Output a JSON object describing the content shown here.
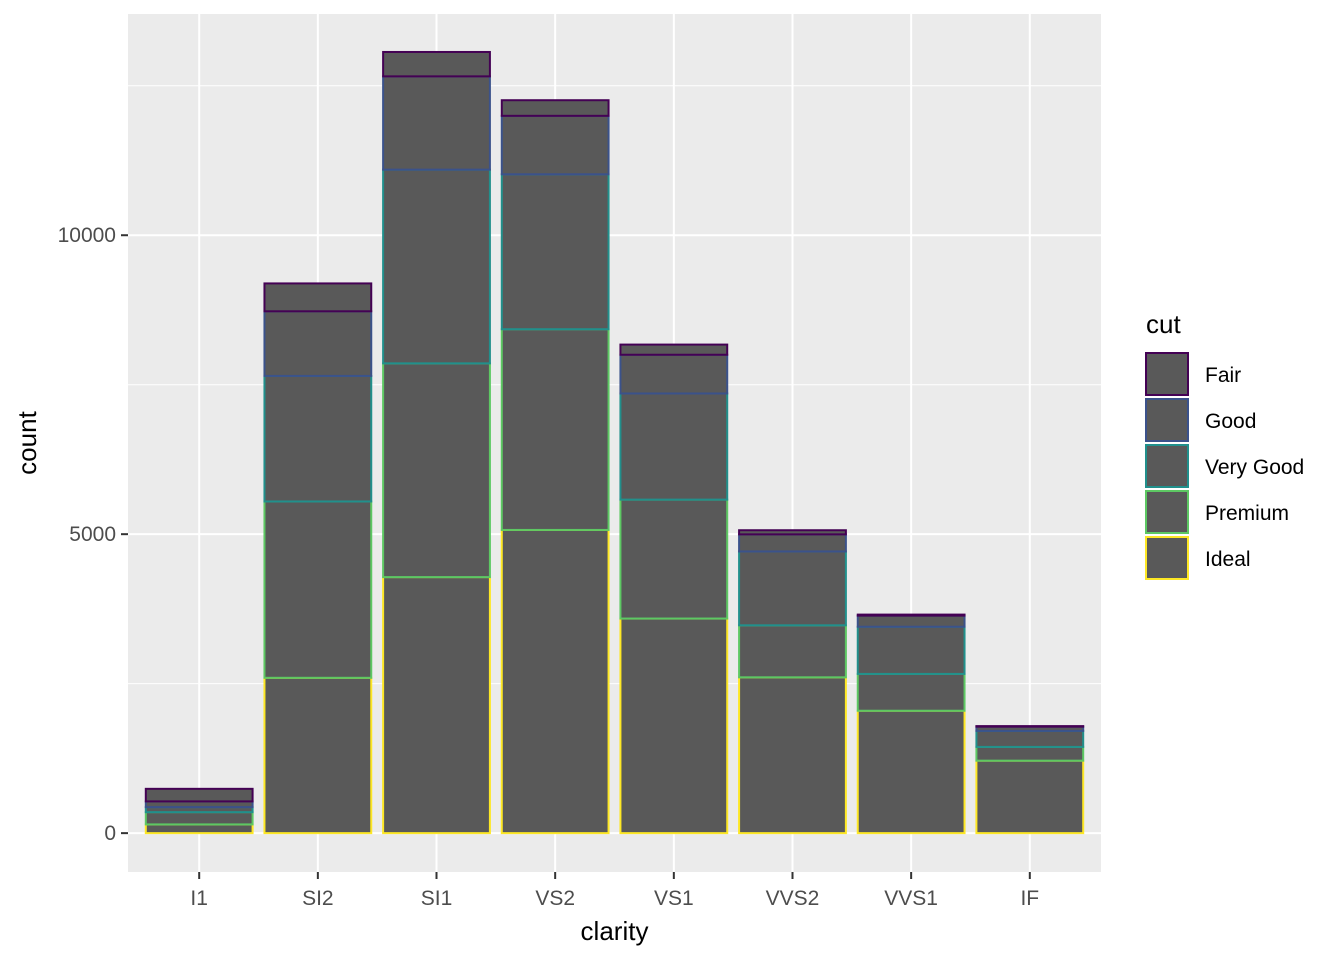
{
  "chart_data": {
    "type": "bar",
    "stacked": true,
    "xlabel": "clarity",
    "ylabel": "count",
    "categories": [
      "I1",
      "SI2",
      "SI1",
      "VS2",
      "VS1",
      "VVS2",
      "VVS1",
      "IF"
    ],
    "ylim": [
      -650,
      13700
    ],
    "yticks": [
      0,
      5000,
      10000
    ],
    "ytick_labels": [
      "0",
      "5000",
      "10000"
    ],
    "grid": true,
    "fill_color": "#595959",
    "legend": {
      "title": "cut",
      "position": "right"
    },
    "series": [
      {
        "name": "Fair",
        "color": "#440154",
        "values": [
          210,
          466,
          408,
          261,
          170,
          69,
          17,
          9
        ]
      },
      {
        "name": "Good",
        "color": "#3B528B",
        "values": [
          96,
          1081,
          1560,
          978,
          648,
          286,
          186,
          71
        ]
      },
      {
        "name": "Very Good",
        "color": "#21908C",
        "values": [
          84,
          2100,
          3240,
          2591,
          1775,
          1235,
          789,
          268
        ]
      },
      {
        "name": "Premium",
        "color": "#5DC863",
        "values": [
          205,
          2949,
          3575,
          3357,
          1989,
          870,
          616,
          230
        ]
      },
      {
        "name": "Ideal",
        "color": "#FDE725",
        "values": [
          146,
          2598,
          4282,
          5071,
          3589,
          2606,
          2047,
          1212
        ]
      }
    ]
  }
}
